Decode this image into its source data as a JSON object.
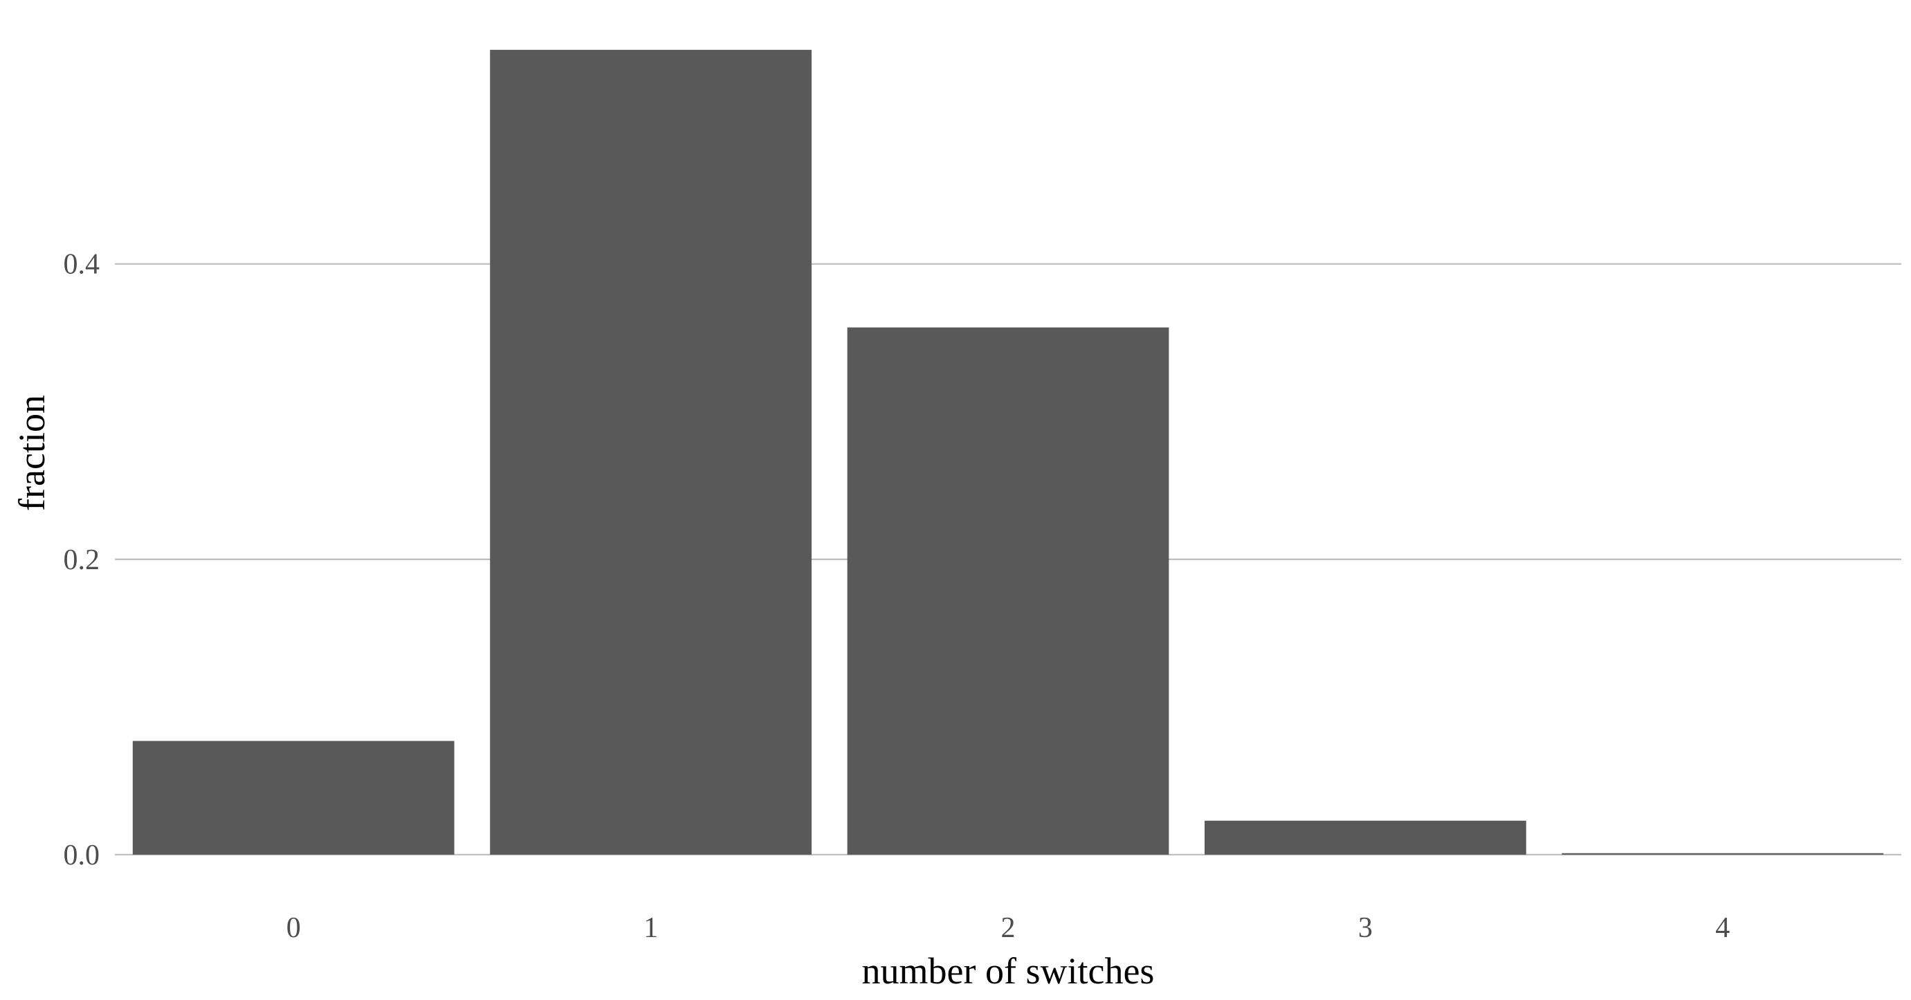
{
  "chart_data": {
    "type": "bar",
    "title": "",
    "xlabel": "number of switches",
    "ylabel": "fraction",
    "categories": [
      "0",
      "1",
      "2",
      "3",
      "4"
    ],
    "values": [
      0.077,
      0.545,
      0.357,
      0.023,
      0.001
    ],
    "ylim": [
      -0.016,
      0.56
    ],
    "yticks": [
      0.0,
      0.2,
      0.4
    ],
    "ytick_labels": [
      "0.0",
      "0.2",
      "0.4"
    ],
    "grid": "horizontal major lines",
    "legend": "none",
    "colors": {
      "bar": "#595959",
      "grid": "#bdbdbd",
      "tick_text": "#4d4d4d",
      "axis_title": "#000000",
      "background": "#ffffff"
    }
  }
}
